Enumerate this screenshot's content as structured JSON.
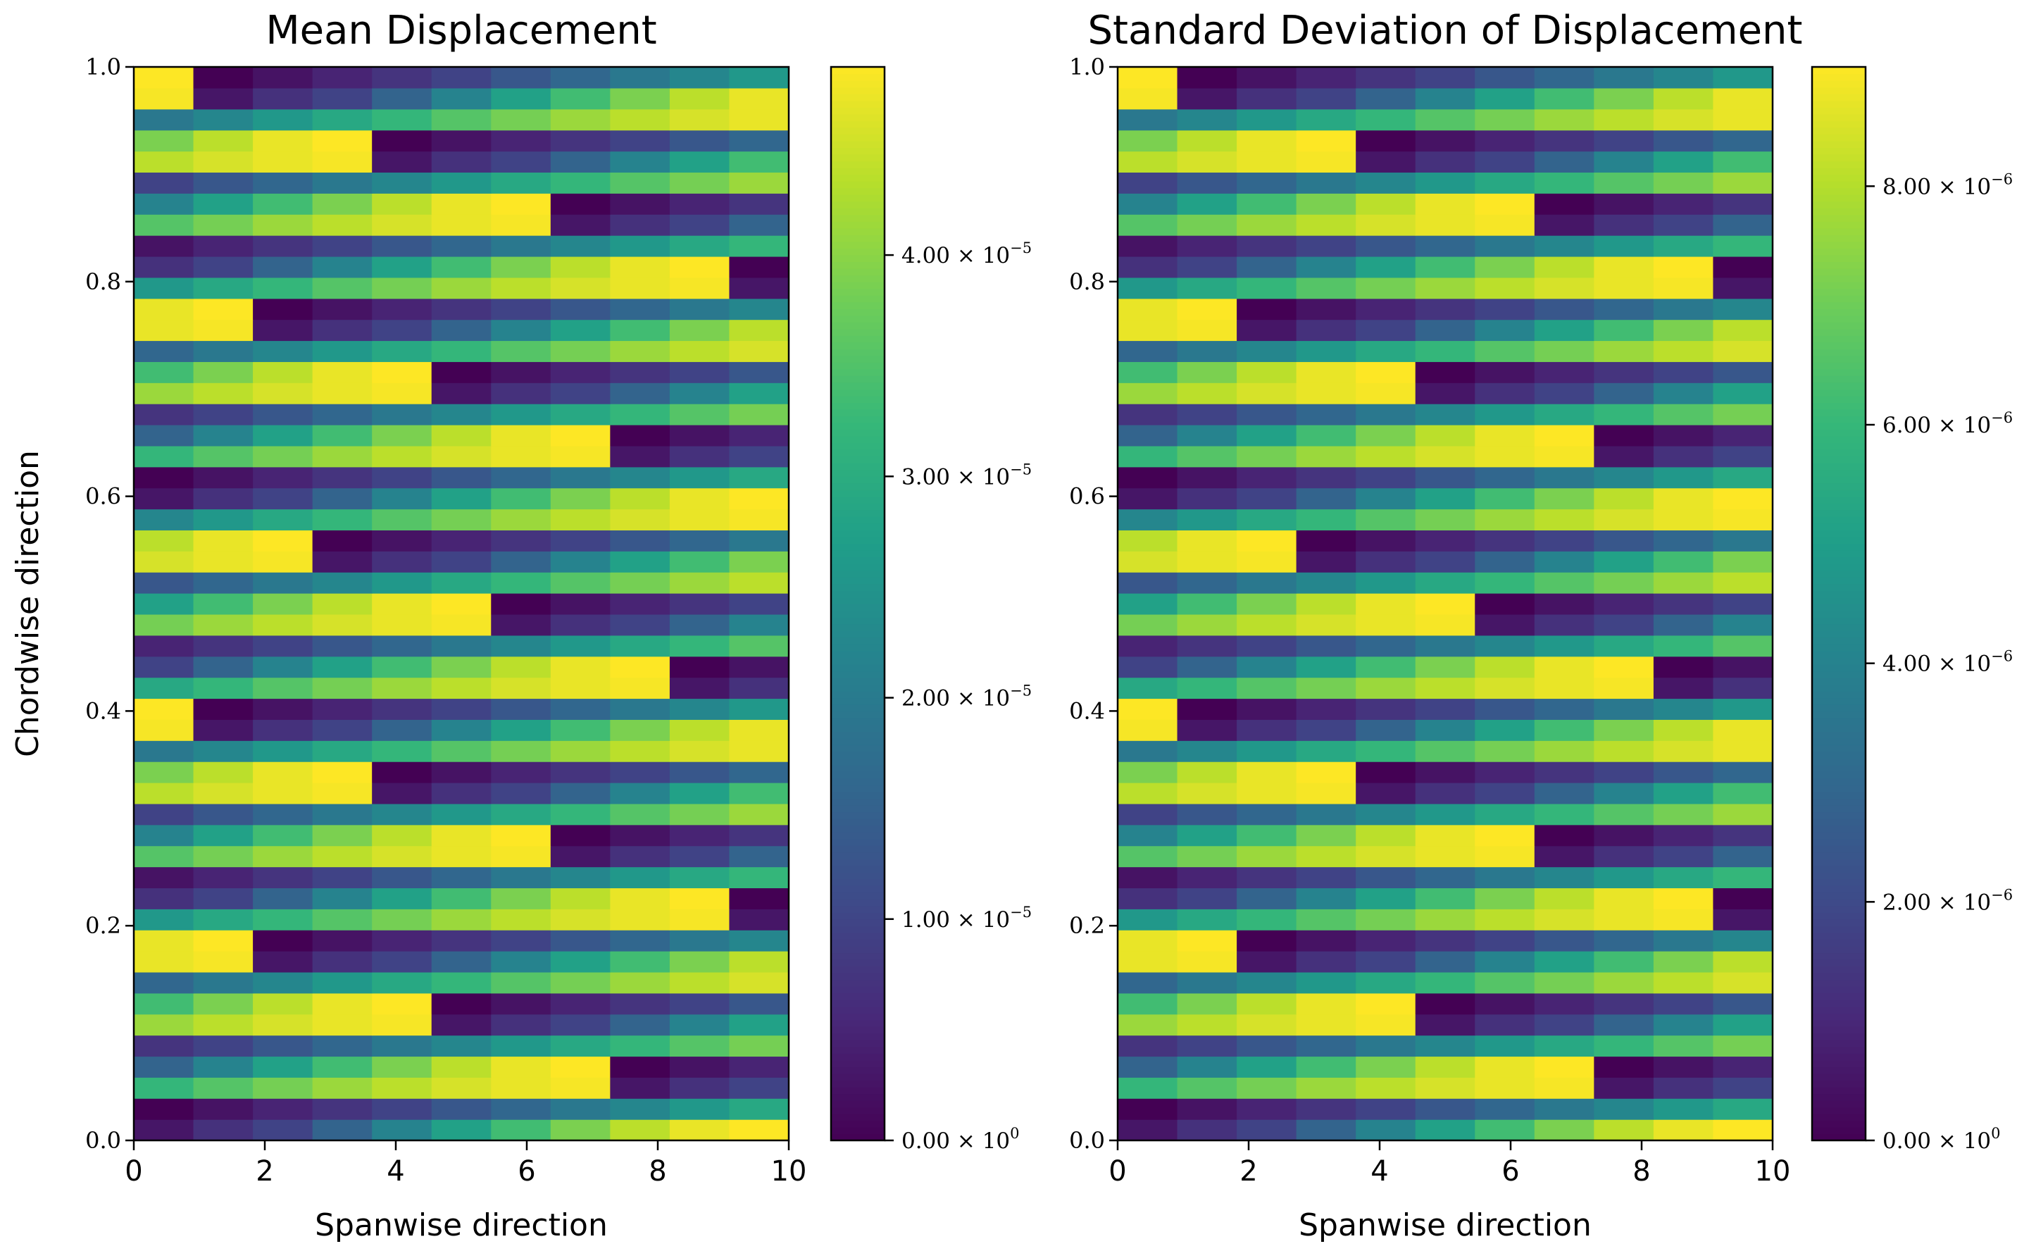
{
  "chart_data": [
    {
      "type": "heatmap",
      "title": "Mean Displacement",
      "xlabel": "Spanwise direction",
      "ylabel": "Chordwise direction",
      "xlim": [
        0,
        10
      ],
      "ylim": [
        0,
        1
      ],
      "x_ticks": [
        "0",
        "2",
        "4",
        "6",
        "8",
        "10"
      ],
      "y_ticks": [
        "0.0",
        "0.2",
        "0.4",
        "0.6",
        "0.8",
        "1.0"
      ],
      "n_columns": 11,
      "n_rows": 51,
      "colormap": "viridis",
      "colorbar": {
        "range": [
          0,
          4.85e-05
        ],
        "ticks": [
          {
            "value": 0,
            "mantissa": "0.00",
            "exponent": "0"
          },
          {
            "value": 1e-05,
            "mantissa": "1.00",
            "exponent": "−5"
          },
          {
            "value": 2e-05,
            "mantissa": "2.00",
            "exponent": "−5"
          },
          {
            "value": 3e-05,
            "mantissa": "3.00",
            "exponent": "−5"
          },
          {
            "value": 4e-05,
            "mantissa": "4.00",
            "exponent": "−5"
          }
        ]
      },
      "pattern": {
        "description": "cell value cycles over flattened index k = row*11 + column with period 30",
        "period": 30,
        "fraction_of_max": [
          0.06,
          0.14,
          0.2,
          0.32,
          0.45,
          0.57,
          0.69,
          0.8,
          0.9,
          0.97,
          1.0,
          0.0,
          0.05,
          0.1,
          0.15,
          0.2,
          0.27,
          0.33,
          0.4,
          0.46,
          0.53,
          0.6,
          0.66,
          0.73,
          0.79,
          0.85,
          0.9,
          0.94,
          0.97,
          0.99
        ]
      }
    },
    {
      "type": "heatmap",
      "title": "Standard Deviation of Displacement",
      "xlabel": "Spanwise direction",
      "ylabel": "",
      "xlim": [
        0,
        10
      ],
      "ylim": [
        0,
        1
      ],
      "x_ticks": [
        "0",
        "2",
        "4",
        "6",
        "8",
        "10"
      ],
      "y_ticks": [
        "0.0",
        "0.2",
        "0.4",
        "0.6",
        "0.8",
        "1.0"
      ],
      "n_columns": 11,
      "n_rows": 51,
      "colormap": "viridis",
      "colorbar": {
        "range": [
          0,
          9e-06
        ],
        "ticks": [
          {
            "value": 0,
            "mantissa": "0.00",
            "exponent": "0"
          },
          {
            "value": 2e-06,
            "mantissa": "2.00",
            "exponent": "−6"
          },
          {
            "value": 4e-06,
            "mantissa": "4.00",
            "exponent": "−6"
          },
          {
            "value": 6e-06,
            "mantissa": "6.00",
            "exponent": "−6"
          },
          {
            "value": 8e-06,
            "mantissa": "8.00",
            "exponent": "−6"
          }
        ]
      },
      "pattern": {
        "description": "cell value cycles over flattened index k = row*11 + column with period 30",
        "period": 30,
        "fraction_of_max": [
          0.06,
          0.14,
          0.2,
          0.32,
          0.45,
          0.57,
          0.69,
          0.8,
          0.9,
          0.97,
          1.0,
          0.0,
          0.05,
          0.1,
          0.15,
          0.2,
          0.27,
          0.33,
          0.4,
          0.46,
          0.53,
          0.6,
          0.66,
          0.73,
          0.79,
          0.85,
          0.9,
          0.94,
          0.97,
          0.99
        ]
      }
    }
  ]
}
